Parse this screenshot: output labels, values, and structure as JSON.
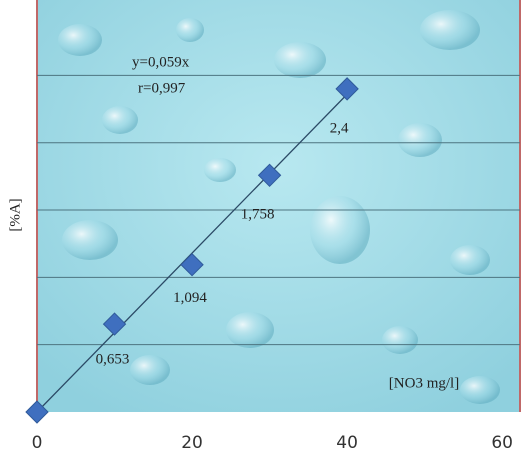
{
  "chart_data": {
    "type": "scatter",
    "annotations": [
      "y=0,059x",
      "r=0,997"
    ],
    "trendline": {
      "slope": 0.059
    },
    "x_label": "[NO3 mg/l]",
    "y_label": "[%A]",
    "x": [
      0,
      10,
      20,
      30,
      40
    ],
    "values": [
      0,
      0.653,
      1.094,
      1.758,
      2.4
    ],
    "value_labels": [
      null,
      "0,653",
      "1,094",
      "1,758",
      "2,4"
    ],
    "color": "#3f6fbf",
    "xlim": [
      0,
      62.3
    ],
    "xticks": [
      0,
      20,
      40,
      60
    ],
    "ylim": [
      0,
      3.06
    ],
    "ygrid": [
      0.5,
      1,
      1.5,
      2,
      2.5
    ]
  }
}
